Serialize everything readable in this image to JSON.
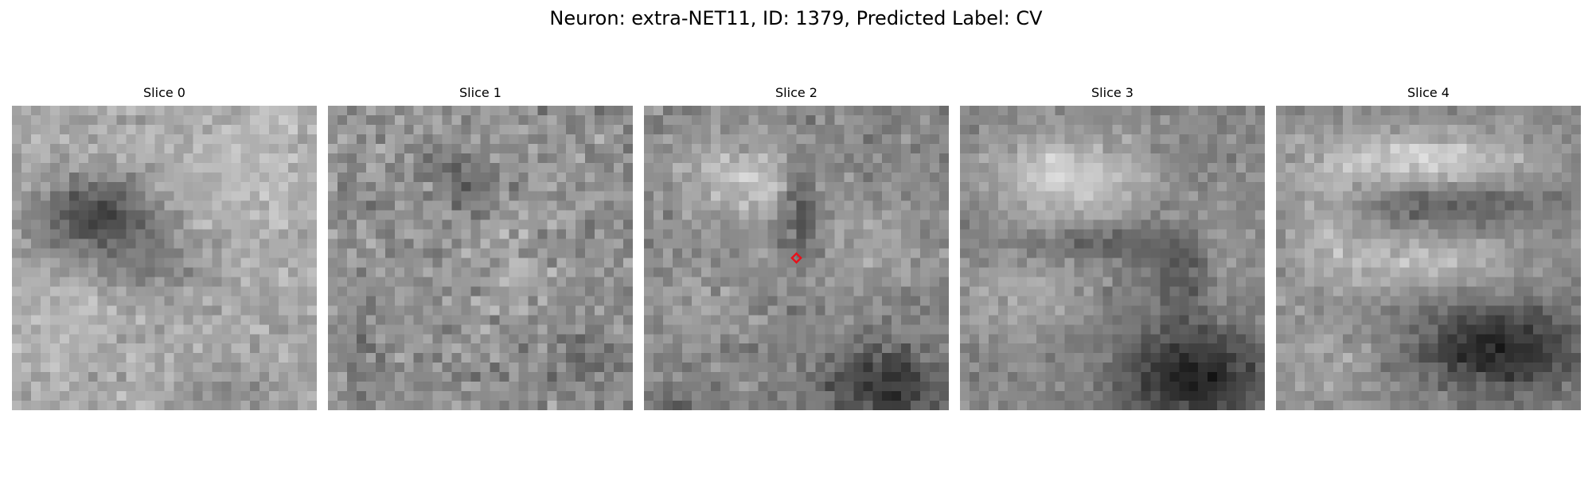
{
  "title": "Neuron: extra-NET11, ID: 1379, Predicted Label: CV",
  "colormap": "gray",
  "grid_size": 32,
  "marker": {
    "shape": "diamond",
    "color": "#e8101a",
    "slice_index": 2
  },
  "panels": [
    {
      "label": "Slice 0"
    },
    {
      "label": "Slice 1"
    },
    {
      "label": "Slice 2"
    },
    {
      "label": "Slice 3"
    },
    {
      "label": "Slice 4"
    }
  ]
}
